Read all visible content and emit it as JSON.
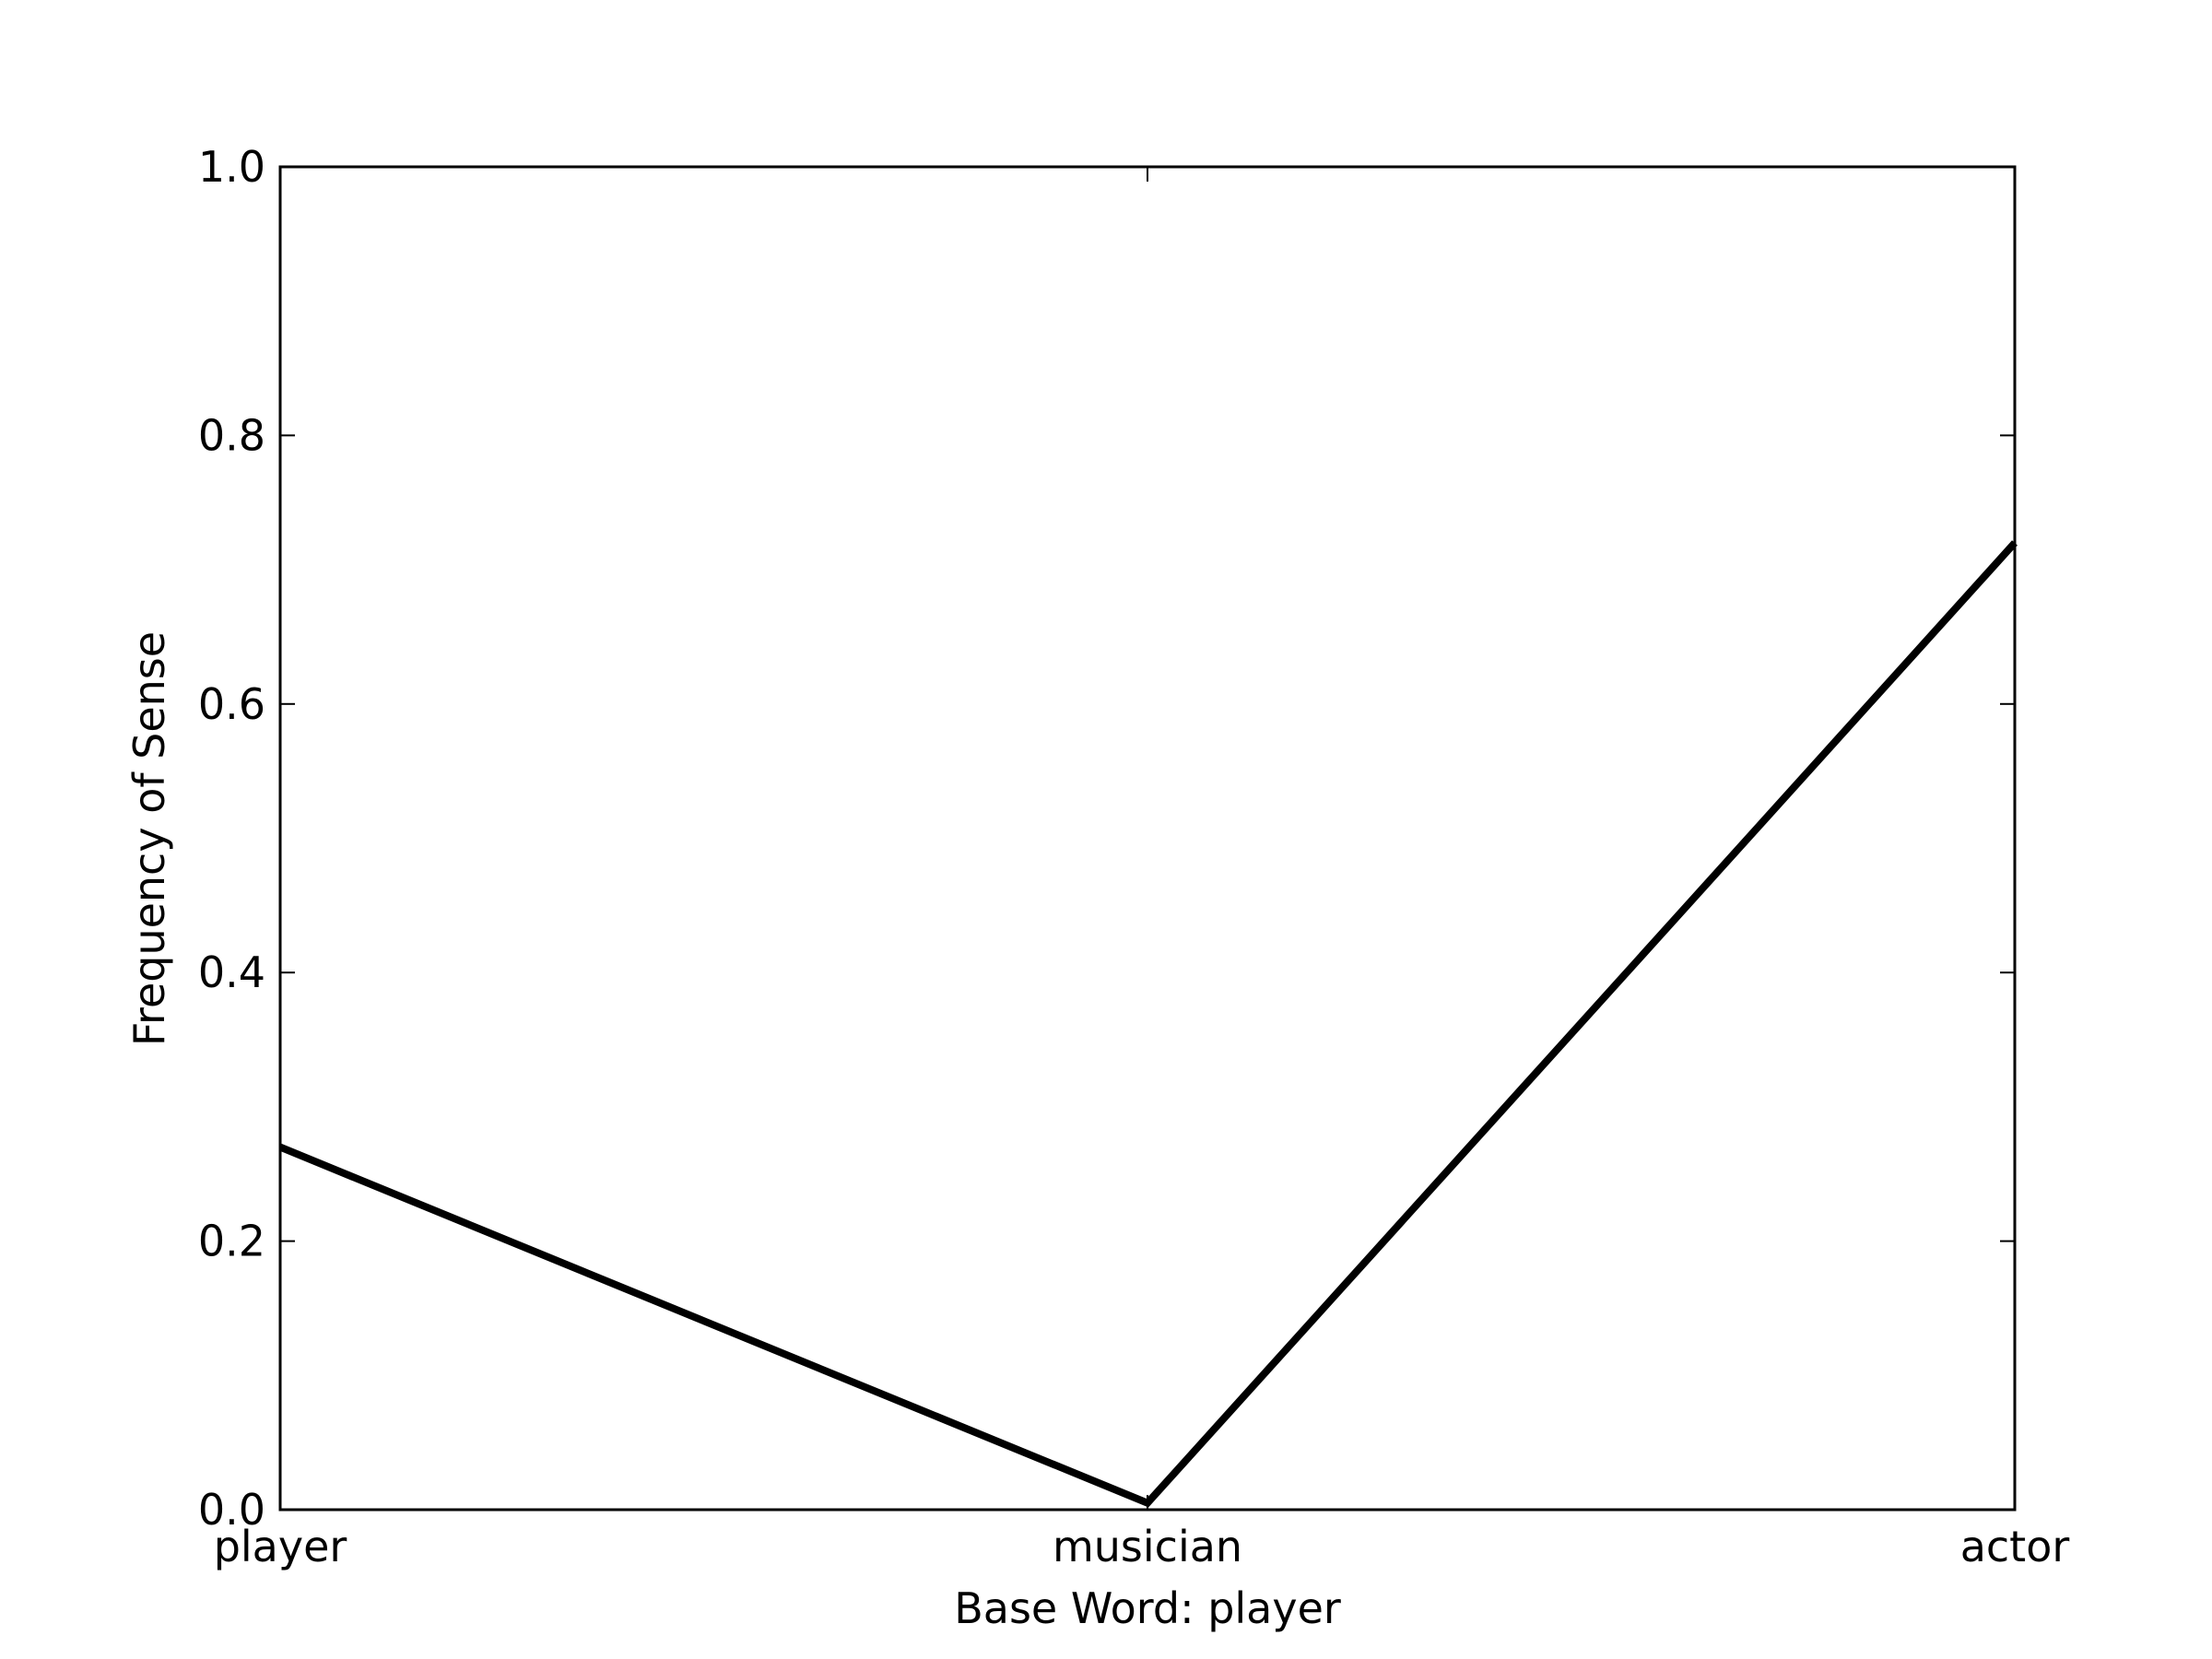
{
  "chart_data": {
    "type": "line",
    "categories": [
      "player",
      "musician",
      "actor"
    ],
    "series": [
      {
        "values": [
          0.27,
          0.005,
          0.72
        ],
        "color": "#000000"
      }
    ],
    "xlabel": "Base Word: player",
    "ylabel": "Frequency of Sense",
    "ylim": [
      0.0,
      1.0
    ],
    "yticks": [
      0.0,
      0.2,
      0.4,
      0.6,
      0.8,
      1.0
    ],
    "ytick_labels": [
      "0.0",
      "0.2",
      "0.4",
      "0.6",
      "0.8",
      "1.0"
    ],
    "grid": false,
    "legend": "none"
  }
}
